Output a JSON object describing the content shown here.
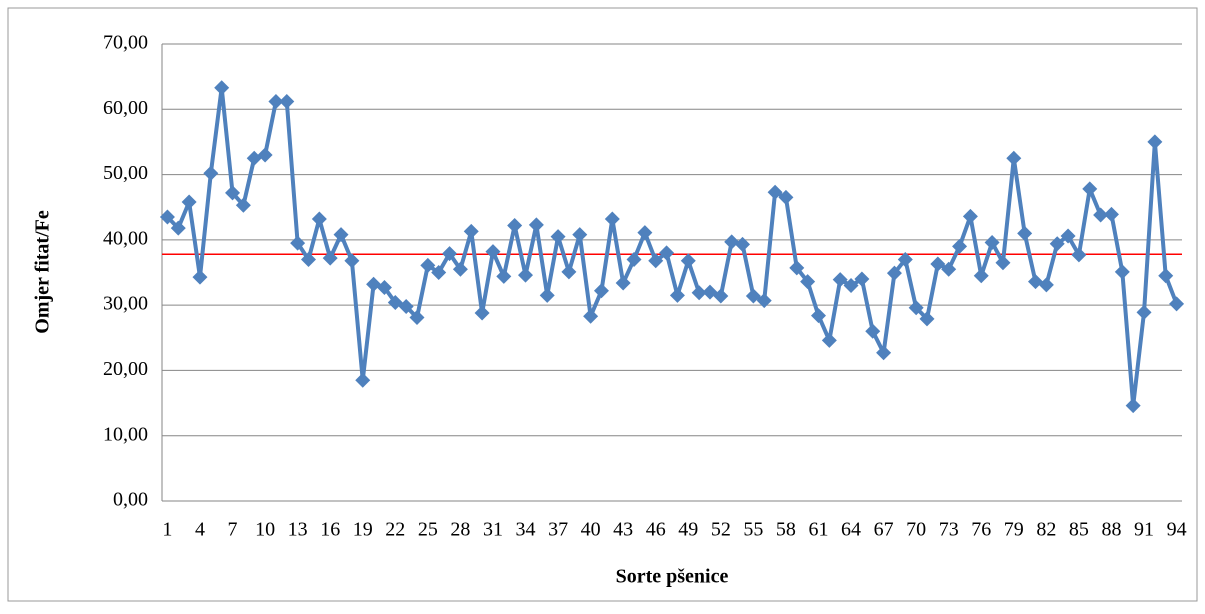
{
  "chart_data": {
    "type": "line",
    "x_label": "Sorte pšenice",
    "y_label": "Omjer fitat/Fe",
    "categories": [
      "1",
      null,
      null,
      "4",
      null,
      null,
      "7",
      null,
      null,
      "10",
      null,
      null,
      "13",
      null,
      null,
      "16",
      null,
      null,
      "19",
      null,
      null,
      "22",
      null,
      null,
      "25",
      null,
      null,
      "28",
      null,
      null,
      "31",
      null,
      null,
      "34",
      null,
      null,
      "37",
      null,
      null,
      "40",
      null,
      null,
      "43",
      null,
      null,
      "46",
      null,
      null,
      "49",
      null,
      null,
      "52",
      null,
      null,
      "55",
      null,
      null,
      "58",
      null,
      null,
      "61",
      null,
      null,
      "64",
      null,
      null,
      "67",
      null,
      null,
      "70",
      null,
      null,
      "73",
      null,
      null,
      "76",
      null,
      null,
      "79",
      null,
      null,
      "82",
      null,
      null,
      "85",
      null,
      null,
      "88",
      null,
      null,
      "91",
      null,
      null,
      "94"
    ],
    "series": [
      {
        "color": "#4f81bd",
        "values": [
          43.5,
          41.8,
          45.8,
          34.3,
          50.2,
          63.3,
          47.2,
          45.3,
          52.5,
          53.0,
          61.2,
          61.2,
          39.5,
          37.0,
          43.2,
          37.2,
          40.8,
          36.8,
          18.5,
          33.2,
          32.7,
          30.4,
          29.8,
          28.1,
          36.1,
          35.0,
          37.9,
          35.5,
          41.3,
          28.8,
          38.2,
          34.4,
          42.2,
          34.6,
          42.3,
          31.5,
          40.5,
          35.1,
          40.8,
          28.3,
          32.2,
          43.2,
          33.4,
          37.0,
          41.1,
          36.8,
          38.0,
          31.5,
          36.8,
          31.9,
          32.0,
          31.4,
          39.7,
          39.3,
          31.4,
          30.7,
          47.3,
          46.5,
          35.7,
          33.6,
          28.4,
          24.6,
          33.9,
          33.0,
          34.0,
          26.0,
          22.7,
          34.9,
          37.0,
          29.6,
          27.9,
          36.3,
          35.5,
          39.0,
          43.6,
          34.5,
          39.6,
          36.5,
          52.5,
          41.0,
          33.6,
          33.1,
          39.4,
          40.6,
          37.7,
          47.8,
          43.8,
          43.9,
          35.1,
          14.6,
          28.9,
          55.0,
          34.5,
          30.2
        ]
      }
    ],
    "reference_line": {
      "value": 37.8,
      "color": "#ff0000"
    },
    "ylim": [
      0,
      70
    ],
    "yticks": [
      {
        "value": 0,
        "label": "0,00"
      },
      {
        "value": 10,
        "label": "10,00"
      },
      {
        "value": 20,
        "label": "20,00"
      },
      {
        "value": 30,
        "label": "30,00"
      },
      {
        "value": 40,
        "label": "40,00"
      },
      {
        "value": 50,
        "label": "50,00"
      },
      {
        "value": 60,
        "label": "60,00"
      },
      {
        "value": 70,
        "label": "70,00"
      }
    ],
    "grid": true
  }
}
